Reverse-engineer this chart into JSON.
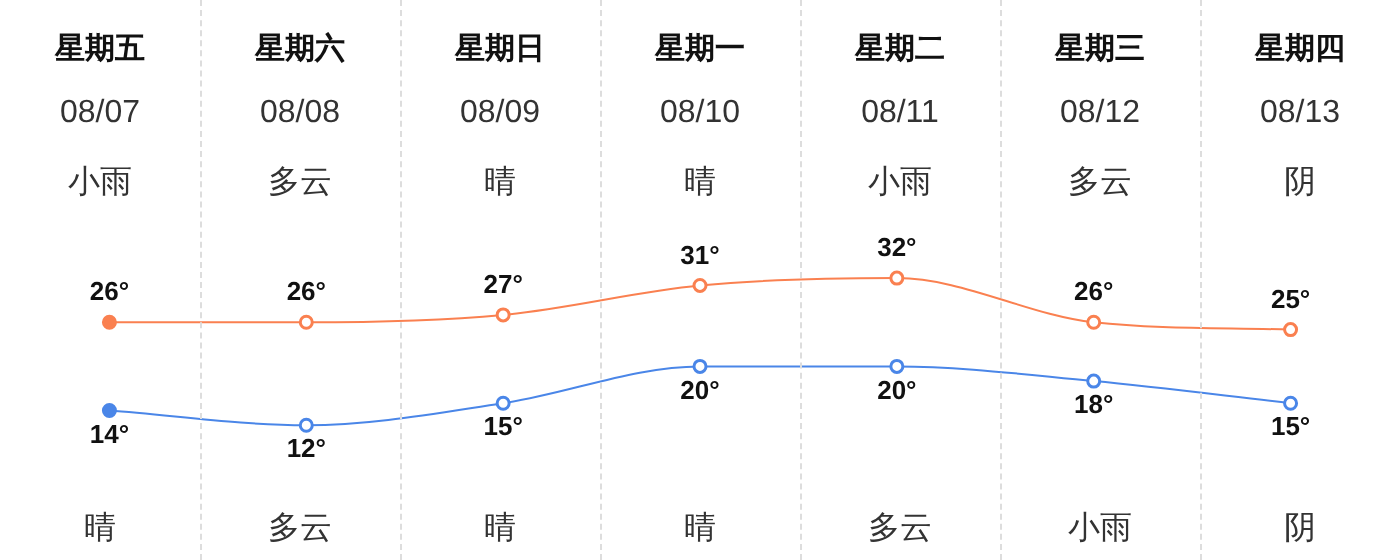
{
  "chart_data": {
    "type": "line",
    "categories": [
      "星期五",
      "星期六",
      "星期日",
      "星期一",
      "星期二",
      "星期三",
      "星期四"
    ],
    "series": [
      {
        "color": "#fa8050",
        "values": [
          26,
          26,
          27,
          31,
          32,
          26,
          25
        ],
        "value_labels": [
          "26°",
          "26°",
          "27°",
          "31°",
          "32°",
          "26°",
          "25°"
        ]
      },
      {
        "color": "#4a86e8",
        "values": [
          14,
          12,
          15,
          20,
          20,
          18,
          15
        ],
        "value_labels": [
          "14°",
          "12°",
          "15°",
          "20°",
          "20°",
          "18°",
          "15°"
        ]
      }
    ],
    "annotations": [
      "08/07",
      "08/08",
      "08/09",
      "08/10",
      "08/11",
      "08/12",
      "08/13",
      "小雨",
      "多云",
      "晴",
      "晴",
      "小雨",
      "多云",
      "阴",
      "晴",
      "多云",
      "晴",
      "晴",
      "多云",
      "小雨",
      "阴"
    ],
    "grid": "x",
    "marker": "circle",
    "line_style": "solid",
    "legend": false
  }
}
